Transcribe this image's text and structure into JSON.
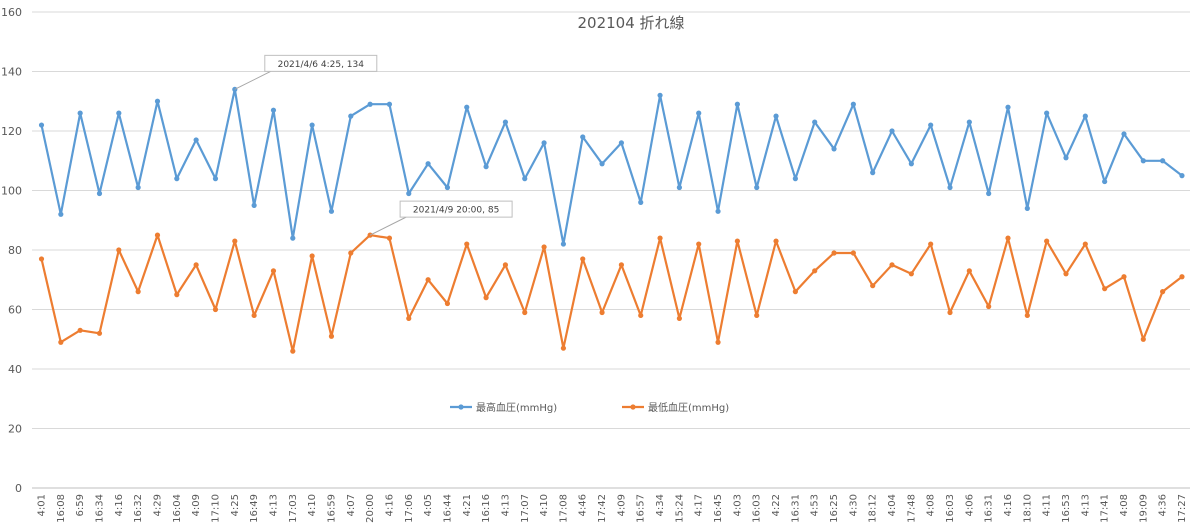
{
  "chart_data": {
    "type": "line",
    "title": "202104  折れ線",
    "xlabel": "",
    "ylabel": "",
    "ylim": [
      0,
      160
    ],
    "yticks": [
      0,
      20,
      40,
      60,
      80,
      100,
      120,
      140,
      160
    ],
    "grid": true,
    "legend_position": "center",
    "categories": [
      "4:01",
      "16:08",
      "6:59",
      "16:34",
      "4:16",
      "16:32",
      "4:29",
      "16:04",
      "4:09",
      "17:10",
      "4:25",
      "16:49",
      "4:13",
      "17:03",
      "4:10",
      "16:59",
      "4:07",
      "20:00",
      "4:16",
      "17:06",
      "4:05",
      "16:44",
      "4:21",
      "16:16",
      "4:13",
      "17:07",
      "4:10",
      "17:08",
      "4:46",
      "17:42",
      "4:09",
      "16:57",
      "4:34",
      "15:24",
      "4:17",
      "16:45",
      "4:03",
      "16:03",
      "4:22",
      "16:31",
      "4:53",
      "16:25",
      "4:30",
      "18:12",
      "4:04",
      "17:48",
      "4:08",
      "16:03",
      "4:06",
      "16:31",
      "4:16",
      "18:10",
      "4:11",
      "16:53",
      "4:13",
      "17:41",
      "4:08",
      "19:09",
      "4:36",
      "17:27"
    ],
    "series": [
      {
        "name": "最高血圧(mmHg)",
        "color": "#5b9bd5",
        "values": [
          122,
          92,
          126,
          99,
          126,
          101,
          130,
          104,
          117,
          104,
          134,
          95,
          127,
          84,
          122,
          93,
          125,
          129,
          129,
          99,
          109,
          101,
          128,
          108,
          123,
          104,
          116,
          82,
          118,
          109,
          116,
          96,
          132,
          101,
          126,
          93,
          129,
          101,
          125,
          104,
          123,
          114,
          129,
          106,
          120,
          109,
          122,
          101,
          123,
          99,
          128,
          94,
          126,
          111,
          125,
          103,
          119,
          110,
          110,
          105
        ]
      },
      {
        "name": "最低血圧(mmHg)",
        "color": "#ed7d31",
        "values": [
          77,
          49,
          53,
          52,
          80,
          66,
          85,
          65,
          75,
          60,
          83,
          58,
          73,
          46,
          78,
          51,
          79,
          85,
          84,
          57,
          70,
          62,
          82,
          64,
          75,
          59,
          81,
          47,
          77,
          59,
          75,
          58,
          84,
          57,
          82,
          49,
          83,
          58,
          83,
          66,
          73,
          79,
          79,
          68,
          75,
          72,
          82,
          59,
          73,
          61,
          84,
          58,
          83,
          72,
          82,
          67,
          71,
          50,
          66,
          71
        ]
      }
    ],
    "annotations": [
      {
        "series": 0,
        "index": 10,
        "text": "2021/4/6 4:25, 134"
      },
      {
        "series": 1,
        "index": 17,
        "text": "2021/4/9 20:00, 85"
      }
    ]
  }
}
